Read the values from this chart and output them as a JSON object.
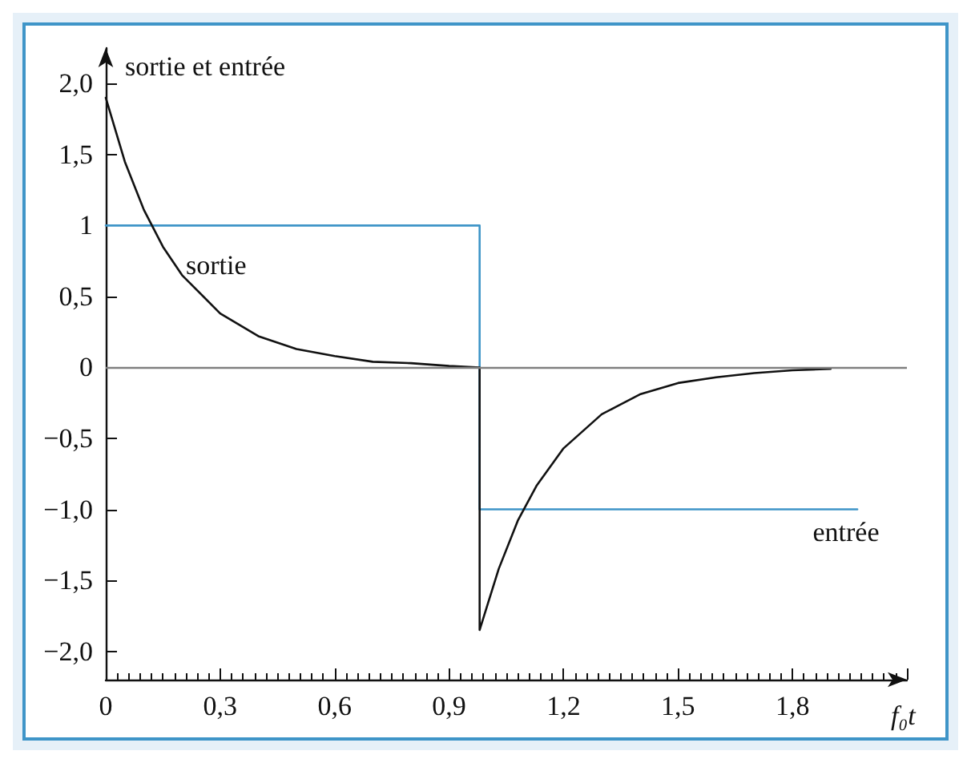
{
  "chart_data": {
    "type": "line",
    "ylabel": "sortie et entrée",
    "xlabel": "f₀t",
    "xlim": [
      0,
      2.1
    ],
    "xticks": [
      0,
      {
        "value": 0.3,
        "label": "0,3"
      },
      {
        "value": 0.6,
        "label": "0,6"
      },
      {
        "value": 0.9,
        "label": "0,9"
      },
      {
        "value": 1.2,
        "label": "1,2"
      },
      {
        "value": 1.5,
        "label": "1,5"
      },
      {
        "value": 1.8,
        "label": "1,8"
      }
    ],
    "ylim": [
      -2.2,
      2.25
    ],
    "yticks": [
      {
        "value": -2,
        "label": "−2,0"
      },
      {
        "value": -1.5,
        "label": "−1,5"
      },
      {
        "value": -1,
        "label": "−1,0"
      },
      {
        "value": -0.5,
        "label": "−0,5"
      },
      0,
      {
        "value": 0.5,
        "label": "0,5"
      },
      1,
      {
        "value": 1.5,
        "label": "1,5"
      },
      {
        "value": 2,
        "label": "2,0"
      }
    ],
    "grid": false,
    "marker": "none",
    "line_style": "solid",
    "series": [
      {
        "color": "#3f95c8",
        "x": [
          0,
          0.98,
          0.98,
          1.97
        ],
        "values": [
          1,
          1,
          -1,
          -1
        ]
      },
      {
        "color": "#111111",
        "x": [
          0,
          0.05,
          0.1,
          0.15,
          0.2,
          0.3,
          0.4,
          0.5,
          0.6,
          0.7,
          0.8,
          0.9,
          0.98,
          0.98,
          1.03,
          1.08,
          1.13,
          1.2,
          1.3,
          1.4,
          1.5,
          1.6,
          1.7,
          1.8,
          1.9
        ],
        "values": [
          1.9,
          1.45,
          1.11,
          0.85,
          0.65,
          0.38,
          0.22,
          0.13,
          0.08,
          0.04,
          0.03,
          0.01,
          0,
          -1.85,
          -1.42,
          -1.08,
          -0.83,
          -0.57,
          -0.33,
          -0.19,
          -0.11,
          -0.07,
          -0.04,
          -0.02,
          -0.01
        ]
      }
    ],
    "ref_lines": [
      {
        "axis": "y",
        "value": 0,
        "color": "#7f7f7f"
      }
    ],
    "annotations": [
      {
        "text": "sortie",
        "x": 0.21,
        "y": 0.72
      },
      "entrée"
    ]
  }
}
